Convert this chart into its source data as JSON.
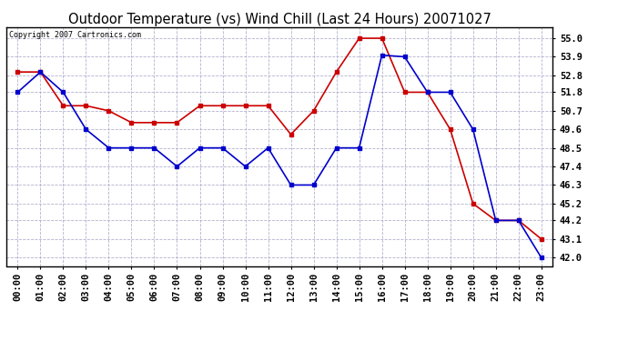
{
  "title": "Outdoor Temperature (vs) Wind Chill (Last 24 Hours) 20071027",
  "copyright": "Copyright 2007 Cartronics.com",
  "x_labels": [
    "00:00",
    "01:00",
    "02:00",
    "03:00",
    "04:00",
    "05:00",
    "06:00",
    "07:00",
    "08:00",
    "09:00",
    "10:00",
    "11:00",
    "12:00",
    "13:00",
    "14:00",
    "15:00",
    "16:00",
    "17:00",
    "18:00",
    "19:00",
    "20:00",
    "21:00",
    "22:00",
    "23:00"
  ],
  "temp_red": [
    53.0,
    53.0,
    51.0,
    51.0,
    50.7,
    50.0,
    50.0,
    50.0,
    51.0,
    51.0,
    51.0,
    51.0,
    49.3,
    50.7,
    53.0,
    55.0,
    55.0,
    51.8,
    51.8,
    49.6,
    45.2,
    44.2,
    44.2,
    43.1
  ],
  "wind_chill_blue": [
    51.8,
    53.0,
    51.8,
    49.6,
    48.5,
    48.5,
    48.5,
    47.4,
    48.5,
    48.5,
    47.4,
    48.5,
    46.3,
    46.3,
    48.5,
    48.5,
    54.0,
    53.9,
    51.8,
    51.8,
    49.6,
    44.2,
    44.2,
    42.0
  ],
  "ylim_min": 41.5,
  "ylim_max": 55.65,
  "yticks": [
    42.0,
    43.1,
    44.2,
    45.2,
    46.3,
    47.4,
    48.5,
    49.6,
    50.7,
    51.8,
    52.8,
    53.9,
    55.0
  ],
  "red_color": "#cc0000",
  "blue_color": "#0000cc",
  "bg_color": "#ffffff",
  "grid_color": "#aaaacc",
  "title_fontsize": 10.5,
  "tick_fontsize": 7.5,
  "copyright_fontsize": 6.0
}
